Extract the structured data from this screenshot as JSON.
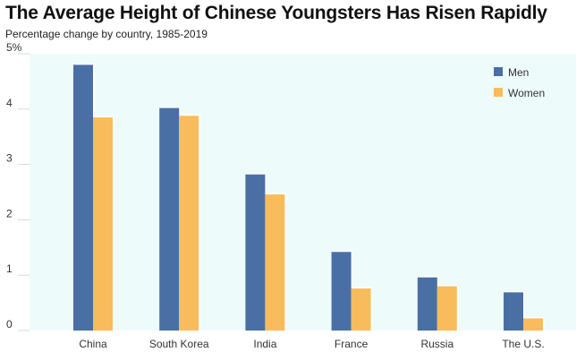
{
  "chart_data": {
    "type": "bar",
    "title": "The Average Height of Chinese Youngsters Has Risen Rapidly",
    "subtitle": "Percentage change by country, 1985-2019",
    "categories": [
      "China",
      "South Korea",
      "India",
      "France",
      "Russia",
      "The U.S."
    ],
    "series": [
      {
        "name": "Men",
        "values": [
          4.8,
          4.02,
          2.82,
          1.42,
          0.96,
          0.69
        ]
      },
      {
        "name": "Women",
        "values": [
          3.85,
          3.88,
          2.46,
          0.76,
          0.8,
          0.22
        ]
      }
    ],
    "yticks": [
      "0",
      "1",
      "2",
      "3",
      "4",
      "5%"
    ],
    "ylim": [
      0,
      5
    ],
    "xlabel": "",
    "ylabel": "",
    "legend_position": "top-right",
    "grid": false,
    "colors": {
      "Men": "#4a6fa5",
      "Women": "#f9bc5c",
      "plot_background": "#eefbfb"
    }
  }
}
